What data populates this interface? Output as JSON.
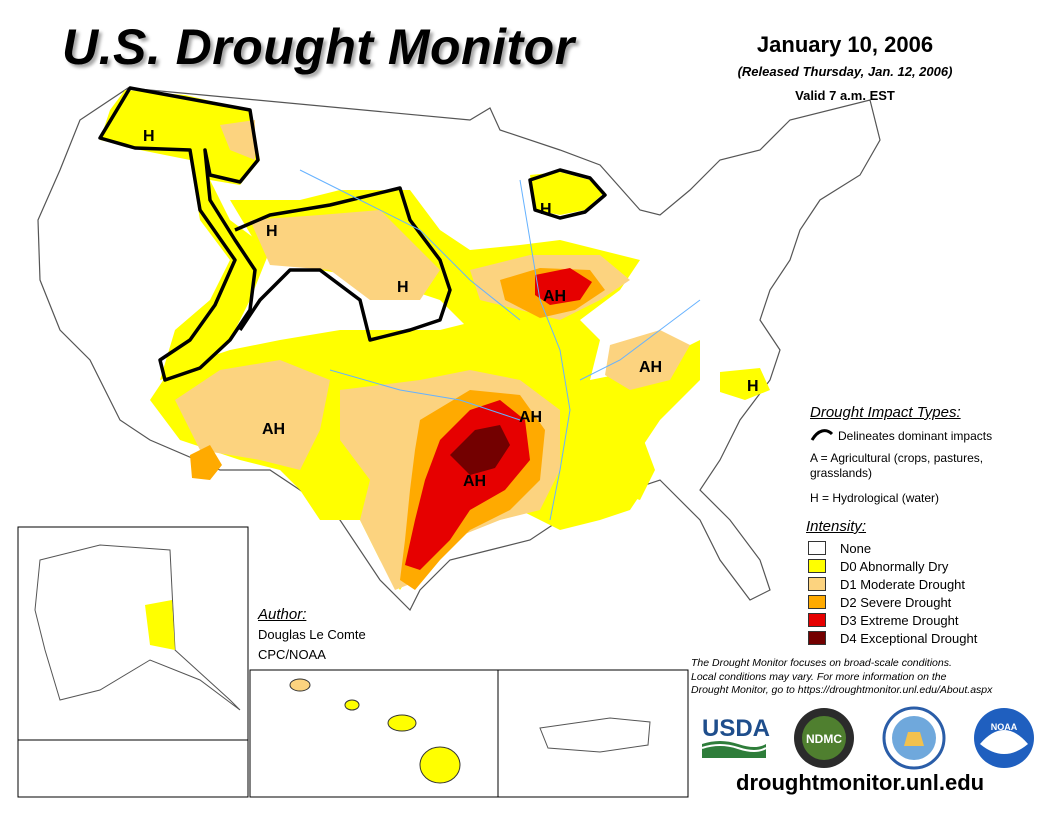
{
  "header": {
    "title": "U.S. Drought Monitor",
    "date": "January 10, 2006",
    "released": "(Released Thursday, Jan. 12, 2006)",
    "valid": "Valid 7 a.m. EST"
  },
  "colors": {
    "d0": "#ffff00",
    "d1": "#fcd37f",
    "d2": "#ffaa00",
    "d3": "#e60000",
    "d4": "#730000",
    "water": "#66b2ff",
    "boundary": "#000000"
  },
  "map_labels": {
    "h_northwest": "H",
    "h_montana": "H",
    "h_plains": "H",
    "h_michigan": "H",
    "h_carolina": "H",
    "ah_southwest": "AH",
    "ah_illinois": "AH",
    "ah_kentucky": "AH",
    "ah_arkansas": "AH",
    "ah_texas": "AH"
  },
  "impact_legend": {
    "title": "Drought Impact Types:",
    "line_label": "Delineates dominant impacts",
    "a_line1": "A = Agricultural (crops, pastures,",
    "a_line2": "grasslands)",
    "h_line": "H = Hydrological (water)"
  },
  "intensity_legend": {
    "title": "Intensity:",
    "items": [
      {
        "label": "None",
        "color": "#ffffff"
      },
      {
        "label": "D0 Abnormally Dry",
        "color": "#ffff00"
      },
      {
        "label": "D1 Moderate Drought",
        "color": "#fcd37f"
      },
      {
        "label": "D2 Severe Drought",
        "color": "#ffaa00"
      },
      {
        "label": "D3 Extreme Drought",
        "color": "#e60000"
      },
      {
        "label": "D4 Exceptional Drought",
        "color": "#730000"
      }
    ]
  },
  "author": {
    "heading": "Author:",
    "name": "Douglas Le Comte",
    "org": "CPC/NOAA"
  },
  "footer": {
    "note_line1": "The Drought Monitor focuses on broad-scale conditions.",
    "note_line2": "Local conditions may vary. For more information on the",
    "note_line3": "Drought Monitor, go to https://droughtmonitor.unl.edu/About.aspx",
    "url": "droughtmonitor.unl.edu",
    "usda": "USDA",
    "ndmc": "NDMC",
    "noaa": "NOAA"
  }
}
